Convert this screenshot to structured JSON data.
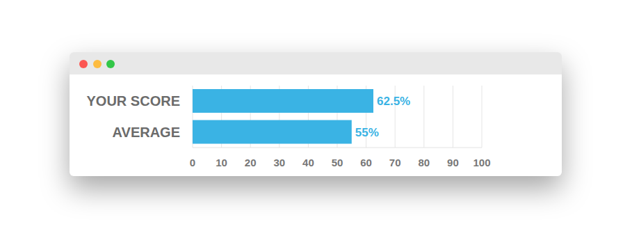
{
  "chart_data": {
    "type": "bar",
    "orientation": "horizontal",
    "categories": [
      "YOUR SCORE",
      "AVERAGE"
    ],
    "values": [
      62.5,
      55
    ],
    "value_labels": [
      "62.5%",
      "55%"
    ],
    "data_labels": true,
    "color": "#3ab3e4",
    "xlim": [
      0,
      100
    ],
    "xticks": [
      0,
      10,
      20,
      30,
      40,
      50,
      60,
      70,
      80,
      90,
      100
    ],
    "grid": true
  }
}
